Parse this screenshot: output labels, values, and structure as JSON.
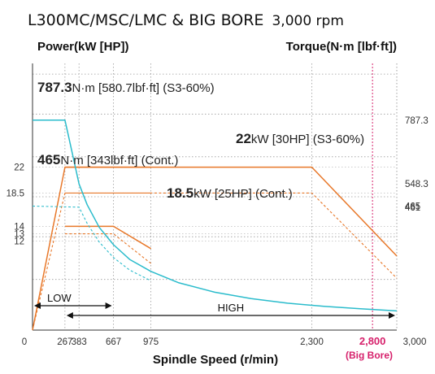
{
  "chart_data": {
    "type": "line",
    "title_bold": "L300MC/MSC/LMC & BIG BORE",
    "title_rest": "3,000 rpm",
    "left_axis_title": "Power(kW [HP])",
    "right_axis_title": "Torque(N·m [lbf·ft])",
    "xlabel": "Spindle Speed (r/min)",
    "xlim": [
      0,
      3000
    ],
    "x_ticks": [
      {
        "v": 0,
        "label": "0"
      },
      {
        "v": 267,
        "label": "267"
      },
      {
        "v": 383,
        "label": "383"
      },
      {
        "v": 667,
        "label": "667"
      },
      {
        "v": 975,
        "label": "975"
      },
      {
        "v": 2300,
        "label": "2,300"
      },
      {
        "v": 2800,
        "label": "2,800"
      },
      {
        "v": 3000,
        "label": "3,000"
      }
    ],
    "big_bore_speed_label": "2,800",
    "big_bore_note": "(Big Bore)",
    "power_ylim": [
      0,
      36
    ],
    "power_ticks": [
      {
        "v": 22,
        "label": "22"
      },
      {
        "v": 18.5,
        "label": "18.5"
      },
      {
        "v": 14,
        "label": "14"
      },
      {
        "v": 13,
        "label": "13"
      },
      {
        "v": 12,
        "label": "12"
      }
    ],
    "torque_ylim": [
      0,
      1000
    ],
    "torque_ticks": [
      {
        "v": 787.3,
        "label": "787.3"
      },
      {
        "v": 548.3,
        "label": "548.3"
      },
      {
        "v": 465,
        "label": "465"
      },
      {
        "v": 461,
        "label": "461"
      }
    ],
    "series": [
      {
        "axis": "power",
        "dashed": false,
        "color": "#e8782a",
        "x": [
          0,
          267,
          975
        ],
        "y": [
          0,
          22,
          22
        ]
      },
      {
        "axis": "power",
        "dashed": false,
        "color": "#e8782a",
        "x": [
          267,
          2300,
          3000
        ],
        "y": [
          22,
          22,
          10
        ]
      },
      {
        "axis": "power",
        "dashed": true,
        "color": "#e8782a",
        "x": [
          0,
          267,
          975
        ],
        "y": [
          0,
          18.5,
          18.5
        ]
      },
      {
        "axis": "power",
        "dashed": true,
        "color": "#e8782a",
        "x": [
          267,
          2300,
          3000
        ],
        "y": [
          18.5,
          18.5,
          7
        ]
      },
      {
        "axis": "power",
        "dashed": false,
        "color": "#e8782a",
        "x": [
          267,
          667,
          975
        ],
        "y": [
          14,
          14,
          11
        ]
      },
      {
        "axis": "power",
        "dashed": true,
        "color": "#e8782a",
        "x": [
          267,
          667,
          975
        ],
        "y": [
          13,
          13,
          9
        ]
      },
      {
        "axis": "torque",
        "dashed": false,
        "color": "#2bbccc",
        "x": [
          0,
          267,
          300,
          383,
          450,
          550,
          667,
          800,
          975,
          1200,
          1500,
          1800,
          2100,
          2400,
          2700,
          3000
        ],
        "y": [
          787.3,
          787.3,
          720,
          548.3,
          470,
          385,
          320,
          265,
          220,
          178,
          142,
          118,
          101,
          89,
          80,
          72
        ]
      },
      {
        "axis": "torque",
        "dashed": true,
        "color": "#2bbccc",
        "x": [
          0,
          383,
          450,
          550,
          667,
          800,
          975
        ],
        "y": [
          465,
          461,
          400,
          330,
          272,
          225,
          185
        ]
      }
    ],
    "annotations": [
      {
        "bold": "787.3",
        "rest": "N·m [580.7lbf·ft] (S3-60%)"
      },
      {
        "bold": "22",
        "rest": "kW [30HP] (S3-60%)"
      },
      {
        "bold": "465",
        "rest": "N·m [343lbf·ft] (Cont.)"
      },
      {
        "bold": "18.5",
        "rest": "kW [25HP] (Cont.)"
      }
    ],
    "ranges": [
      {
        "label": "LOW",
        "from": 0,
        "to": 667
      },
      {
        "label": "HIGH",
        "from": 267,
        "to": 3000
      }
    ],
    "grid": true
  }
}
